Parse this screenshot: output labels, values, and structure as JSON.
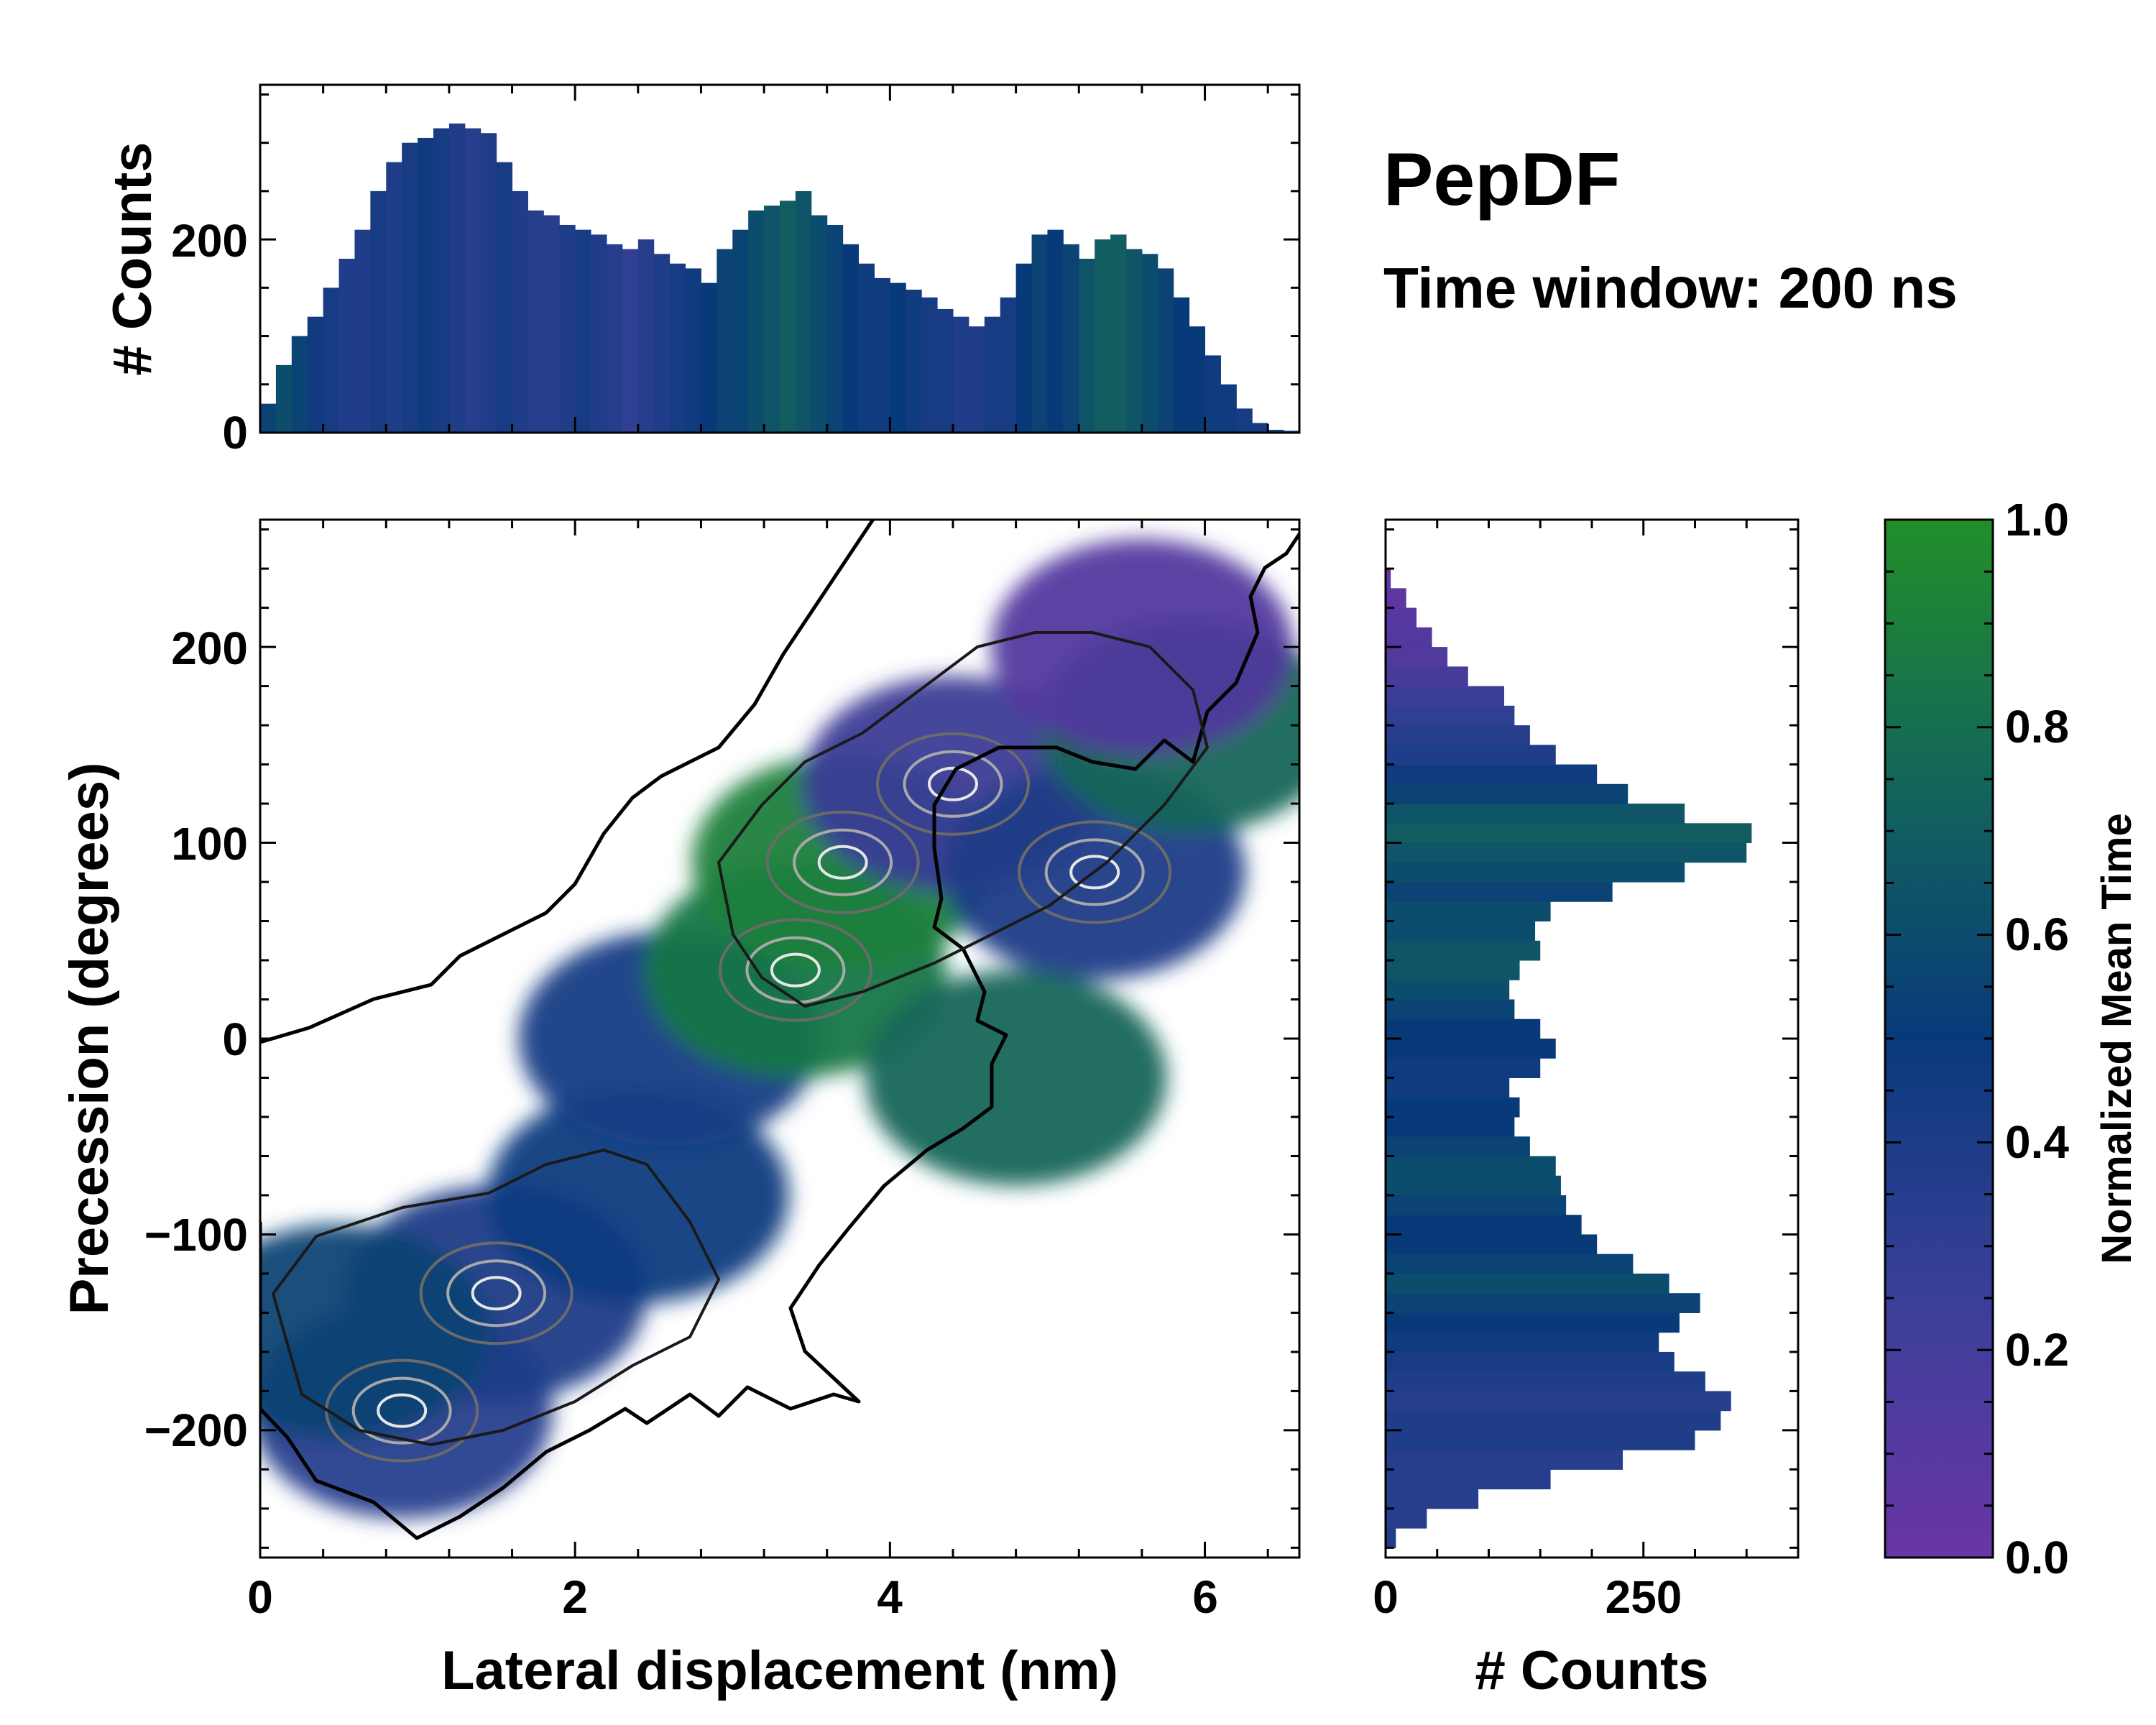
{
  "title": "PepDF",
  "subtitle": "Time window: 200 ns",
  "colors": {
    "low": "#6a35a6",
    "mid_low": "#2f3f92",
    "mid": "#083a7a",
    "mid_high": "#13665a",
    "high": "#218f28",
    "contour_outer": "#000000",
    "contour_inner": "#b0b0b0"
  },
  "chart_data": [
    {
      "id": "main",
      "type": "heatmap",
      "title": "",
      "xlabel": "Lateral displacement (nm)",
      "ylabel": "Precession (degrees)",
      "xlim": [
        0,
        6.6
      ],
      "ylim": [
        -265,
        265
      ],
      "xticks": [
        0,
        2,
        4,
        6
      ],
      "xtick_labels": [
        "0",
        "2",
        "4",
        "6"
      ],
      "yticks": [
        200,
        100,
        0,
        -100,
        -200
      ],
      "ytick_labels": [
        "200",
        "100",
        "0",
        "−100",
        "−200"
      ],
      "density_clusters": [
        {
          "x": 0.9,
          "y": -190,
          "value": 0.3,
          "peak": true
        },
        {
          "x": 1.5,
          "y": -130,
          "value": 0.35,
          "peak": true
        },
        {
          "x": 0.5,
          "y": -150,
          "value": 0.55,
          "peak": false
        },
        {
          "x": 2.4,
          "y": -80,
          "value": 0.45,
          "peak": false
        },
        {
          "x": 2.6,
          "y": 0,
          "value": 0.4,
          "peak": false
        },
        {
          "x": 3.4,
          "y": 35,
          "value": 0.85,
          "peak": true
        },
        {
          "x": 3.7,
          "y": 90,
          "value": 0.9,
          "peak": true
        },
        {
          "x": 4.4,
          "y": 130,
          "value": 0.2,
          "peak": true
        },
        {
          "x": 5.3,
          "y": 85,
          "value": 0.35,
          "peak": true
        },
        {
          "x": 5.9,
          "y": 160,
          "value": 0.75,
          "peak": false
        },
        {
          "x": 5.6,
          "y": 200,
          "value": 0.1,
          "peak": false
        },
        {
          "x": 4.8,
          "y": -20,
          "value": 0.75,
          "peak": false
        }
      ]
    },
    {
      "id": "top-histogram",
      "type": "bar",
      "title": "",
      "xlabel": "",
      "ylabel": "# Counts",
      "xlim": [
        0,
        6.6
      ],
      "ylim": [
        0,
        360
      ],
      "yticks": [
        0,
        200
      ],
      "ytick_labels": [
        "0",
        "200"
      ],
      "bin_centers": [
        0.05,
        0.15,
        0.25,
        0.35,
        0.45,
        0.55,
        0.65,
        0.75,
        0.85,
        0.95,
        1.05,
        1.15,
        1.25,
        1.35,
        1.45,
        1.55,
        1.65,
        1.75,
        1.85,
        1.95,
        2.05,
        2.15,
        2.25,
        2.35,
        2.45,
        2.55,
        2.65,
        2.75,
        2.85,
        2.95,
        3.05,
        3.15,
        3.25,
        3.35,
        3.45,
        3.55,
        3.65,
        3.75,
        3.85,
        3.95,
        4.05,
        4.15,
        4.25,
        4.35,
        4.45,
        4.55,
        4.65,
        4.75,
        4.85,
        4.95,
        5.05,
        5.15,
        5.25,
        5.35,
        5.45,
        5.55,
        5.65,
        5.75,
        5.85,
        5.95,
        6.05,
        6.15,
        6.25,
        6.35,
        6.45,
        6.55
      ],
      "counts": [
        30,
        70,
        100,
        120,
        150,
        180,
        210,
        250,
        280,
        300,
        305,
        315,
        320,
        315,
        310,
        280,
        250,
        230,
        225,
        215,
        210,
        205,
        195,
        190,
        200,
        185,
        175,
        170,
        155,
        190,
        210,
        230,
        235,
        240,
        250,
        225,
        215,
        195,
        175,
        160,
        155,
        148,
        140,
        128,
        120,
        110,
        120,
        140,
        175,
        205,
        210,
        195,
        180,
        200,
        205,
        190,
        185,
        170,
        140,
        110,
        80,
        50,
        25,
        10,
        3,
        2
      ],
      "mean_time": [
        0.55,
        0.6,
        0.55,
        0.45,
        0.4,
        0.35,
        0.35,
        0.4,
        0.35,
        0.4,
        0.45,
        0.4,
        0.35,
        0.3,
        0.35,
        0.4,
        0.35,
        0.3,
        0.3,
        0.35,
        0.4,
        0.35,
        0.3,
        0.25,
        0.3,
        0.35,
        0.4,
        0.45,
        0.5,
        0.55,
        0.55,
        0.6,
        0.65,
        0.7,
        0.65,
        0.6,
        0.55,
        0.5,
        0.45,
        0.45,
        0.5,
        0.45,
        0.4,
        0.4,
        0.35,
        0.35,
        0.4,
        0.4,
        0.5,
        0.55,
        0.5,
        0.55,
        0.65,
        0.7,
        0.7,
        0.65,
        0.6,
        0.55,
        0.5,
        0.5,
        0.45,
        0.45,
        0.4,
        0.4,
        0.4,
        0.4
      ]
    },
    {
      "id": "right-histogram",
      "type": "bar",
      "orientation": "horizontal",
      "title": "",
      "xlabel": "# Counts",
      "ylabel": "",
      "xlim": [
        0,
        400
      ],
      "ylim": [
        -265,
        265
      ],
      "xticks": [
        0,
        250
      ],
      "xtick_labels": [
        "0",
        "250"
      ],
      "bin_centers": [
        -255,
        -245,
        -235,
        -225,
        -215,
        -205,
        -195,
        -185,
        -175,
        -165,
        -155,
        -145,
        -135,
        -125,
        -115,
        -105,
        -95,
        -85,
        -75,
        -65,
        -55,
        -45,
        -35,
        -25,
        -15,
        -5,
        5,
        15,
        25,
        35,
        45,
        55,
        65,
        75,
        85,
        95,
        105,
        115,
        125,
        135,
        145,
        155,
        165,
        175,
        185,
        195,
        205,
        215,
        225,
        235
      ],
      "counts": [
        10,
        40,
        90,
        160,
        230,
        300,
        325,
        335,
        310,
        280,
        265,
        285,
        305,
        275,
        240,
        205,
        190,
        175,
        170,
        165,
        140,
        125,
        130,
        120,
        150,
        165,
        150,
        125,
        120,
        130,
        150,
        145,
        160,
        220,
        290,
        350,
        355,
        290,
        235,
        205,
        165,
        140,
        125,
        115,
        80,
        60,
        45,
        30,
        20,
        5
      ],
      "mean_time": [
        0.35,
        0.3,
        0.3,
        0.3,
        0.3,
        0.35,
        0.35,
        0.3,
        0.35,
        0.4,
        0.45,
        0.5,
        0.55,
        0.6,
        0.55,
        0.5,
        0.5,
        0.55,
        0.6,
        0.6,
        0.55,
        0.5,
        0.5,
        0.45,
        0.45,
        0.5,
        0.5,
        0.55,
        0.6,
        0.65,
        0.65,
        0.6,
        0.6,
        0.55,
        0.6,
        0.65,
        0.7,
        0.65,
        0.55,
        0.45,
        0.35,
        0.3,
        0.25,
        0.2,
        0.15,
        0.1,
        0.1,
        0.08,
        0.05,
        0.05
      ]
    },
    {
      "id": "colorbar",
      "type": "heatmap",
      "title": "",
      "label": "Normalized Mean Time",
      "range": [
        0,
        1
      ],
      "ticks": [
        1.0,
        0.8,
        0.6,
        0.4,
        0.2,
        0.0
      ],
      "tick_labels": [
        "1.0",
        "0.8",
        "0.6",
        "0.4",
        "0.2",
        "0.0"
      ]
    }
  ]
}
